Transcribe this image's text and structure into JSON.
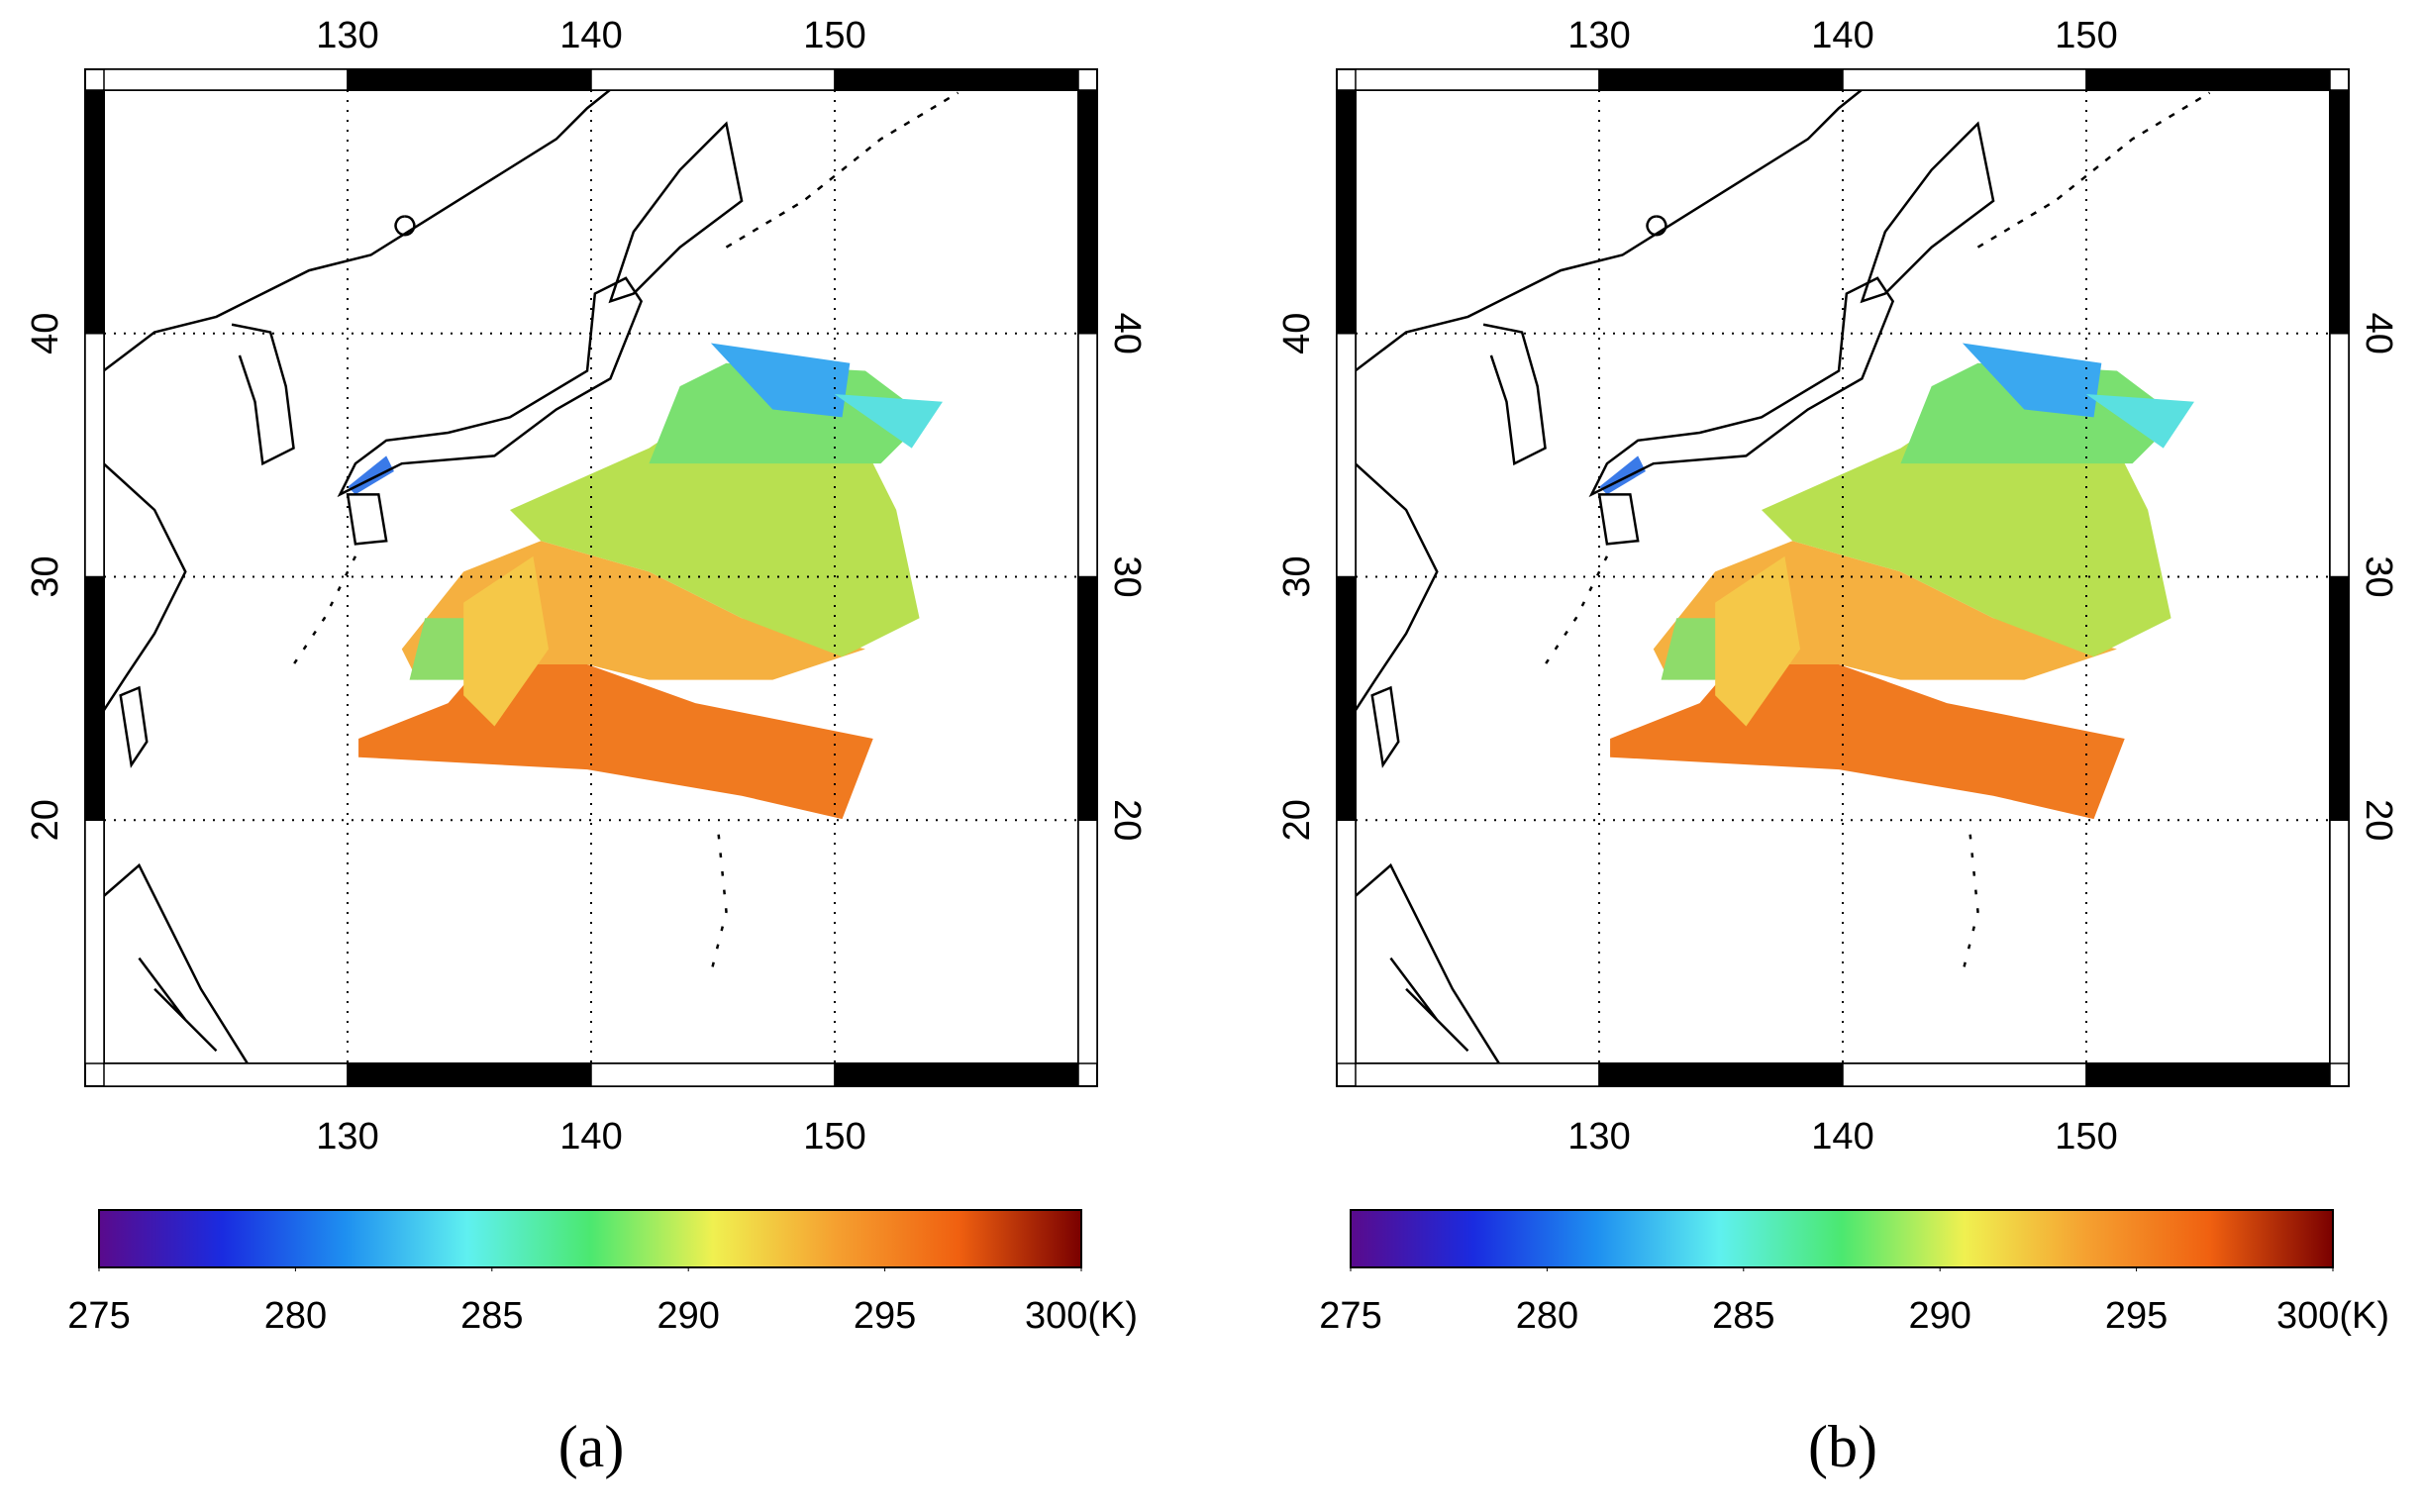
{
  "chart_data": [
    {
      "type": "map",
      "xlim": [
        120,
        160
      ],
      "ylim": [
        10,
        50
      ],
      "xticks": [
        130,
        140,
        150
      ],
      "yticks": [
        20,
        30,
        40
      ],
      "grid": true,
      "colorbar": {
        "xlim": [
          275,
          300
        ],
        "xticks": [
          275,
          280,
          285,
          290,
          295,
          {
            "value": 300,
            "label": "300(K)"
          }
        ],
        "colormap": [
          "#5a0a8c",
          "#1a2be0",
          "#1e8ff0",
          "#5ff0f0",
          "#4be870",
          "#f0f050",
          "#f5a030",
          "#f06010",
          "#7a0000"
        ]
      },
      "caption": "(a)"
    },
    {
      "type": "map",
      "xlim": [
        120,
        160
      ],
      "ylim": [
        10,
        50
      ],
      "xticks": [
        130,
        140,
        150
      ],
      "yticks": [
        20,
        30,
        40
      ],
      "grid": true,
      "colorbar": {
        "xlim": [
          275,
          300
        ],
        "xticks": [
          275,
          280,
          285,
          290,
          295,
          {
            "value": 300,
            "label": "300(K)"
          }
        ],
        "colormap": [
          "#5a0a8c",
          "#1a2be0",
          "#1e8ff0",
          "#5ff0f0",
          "#4be870",
          "#f0f050",
          "#f5a030",
          "#f06010",
          "#7a0000"
        ]
      },
      "caption": "(b)"
    }
  ]
}
